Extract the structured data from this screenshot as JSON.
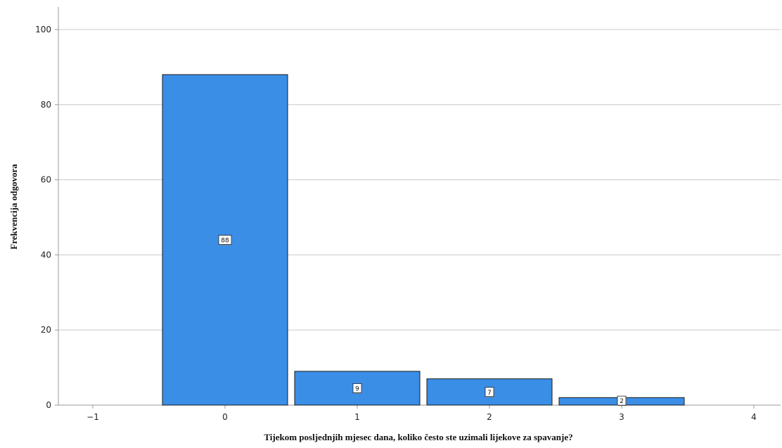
{
  "chart_data": {
    "type": "bar",
    "categories": [
      "0",
      "1",
      "2",
      "3"
    ],
    "x": [
      0,
      1,
      2,
      3
    ],
    "values": [
      88,
      9,
      7,
      2
    ],
    "data_labels": [
      "88",
      "9",
      "7",
      "2"
    ],
    "title": "",
    "xlabel": "Tijekom posljednjih mjesec dana, koliko često ste uzimali lijekove za spavanje?",
    "ylabel": "Frekvencija odgovora",
    "xlim": [
      -1.3,
      4.2
    ],
    "ylim": [
      0,
      105
    ],
    "x_ticks": [
      "-1",
      "0",
      "1",
      "2",
      "3",
      "4"
    ],
    "y_ticks": [
      "0",
      "20",
      "40",
      "60",
      "80",
      "100"
    ],
    "grid": true,
    "legend": "none",
    "colors": {
      "bar_fill": "#3a8ee6",
      "bar_stroke": "#1b1b1b",
      "grid": "#c8c8c8",
      "axis": "#9a9a9a"
    }
  }
}
